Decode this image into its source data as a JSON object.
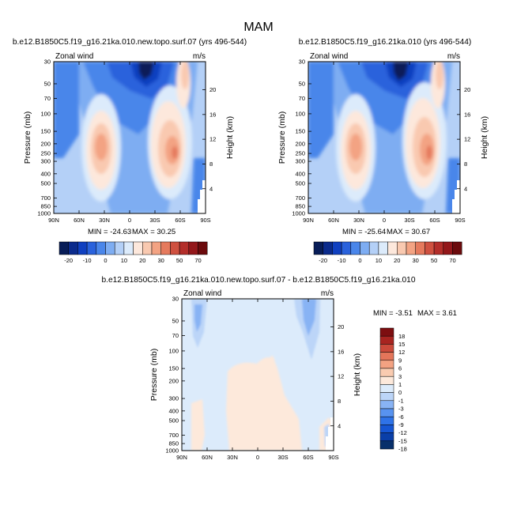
{
  "figure_title": "MAM",
  "chart_data": [
    {
      "type": "heatmap",
      "id": "p1",
      "title": "b.e12.B1850C5.f19_g16.21ka.010.new.topo.surf.07 (yrs 496-544)",
      "left_label": "Zonal wind",
      "right_label": "m/s",
      "xlabel": "",
      "ylabel": "Pressure (mb)",
      "ylabel_right": "Height (km)",
      "x_ticks": [
        "90N",
        "60N",
        "30N",
        "0",
        "30S",
        "60S",
        "90S"
      ],
      "y_ticks": [
        "30",
        "50",
        "70",
        "100",
        "150",
        "200",
        "250",
        "300",
        "400",
        "500",
        "700",
        "850",
        "1000"
      ],
      "height_ticks": [
        "20",
        "16",
        "12",
        "8",
        "4"
      ],
      "min_label": "MIN = -24.63",
      "max_label": "MAX = 30.25",
      "min": -24.63,
      "max": 30.25,
      "contour_levels": [
        -25,
        -20,
        -15,
        -10,
        -5,
        0,
        5,
        10,
        15,
        20,
        25,
        30,
        40,
        50,
        60,
        70
      ],
      "colorbar_labels": [
        "-20",
        "-10",
        "0",
        "10",
        "20",
        "30",
        "50",
        "70"
      ]
    },
    {
      "type": "heatmap",
      "id": "p2",
      "title": "b.e12.B1850C5.f19_g16.21ka.010 (yrs 496-544)",
      "left_label": "Zonal wind",
      "right_label": "m/s",
      "xlabel": "",
      "ylabel": "Pressure (mb)",
      "ylabel_right": "Height (km)",
      "x_ticks": [
        "90N",
        "60N",
        "30N",
        "0",
        "30S",
        "60S",
        "90S"
      ],
      "y_ticks": [
        "30",
        "50",
        "70",
        "100",
        "150",
        "200",
        "250",
        "300",
        "400",
        "500",
        "700",
        "850",
        "1000"
      ],
      "height_ticks": [
        "20",
        "16",
        "12",
        "8",
        "4"
      ],
      "min_label": "MIN = -25.64",
      "max_label": "MAX = 30.67",
      "min": -25.64,
      "max": 30.67,
      "contour_levels": [
        -25,
        -20,
        -15,
        -10,
        -5,
        0,
        5,
        10,
        15,
        20,
        25,
        30,
        40,
        50,
        60,
        70
      ],
      "colorbar_labels": [
        "-20",
        "-10",
        "0",
        "10",
        "20",
        "30",
        "50",
        "70"
      ]
    },
    {
      "type": "heatmap",
      "id": "p3",
      "title": "b.e12.B1850C5.f19_g16.21ka.010.new.topo.surf.07 - b.e12.B1850C5.f19_g16.21ka.010",
      "left_label": "Zonal wind",
      "right_label": "m/s",
      "xlabel": "",
      "ylabel": "Pressure (mb)",
      "ylabel_right": "Height (km)",
      "x_ticks": [
        "90N",
        "60N",
        "30N",
        "0",
        "30S",
        "60S",
        "90S"
      ],
      "y_ticks": [
        "30",
        "50",
        "70",
        "100",
        "150",
        "200",
        "300",
        "400",
        "500",
        "700",
        "850",
        "1000"
      ],
      "height_ticks": [
        "20",
        "16",
        "12",
        "8",
        "4"
      ],
      "min_label": "MIN = -3.51",
      "max_label": "MAX = 3.61",
      "min": -3.51,
      "max": 3.61,
      "contour_levels": [
        -18,
        -15,
        -12,
        -9,
        -6,
        -3,
        -1,
        0,
        1,
        3,
        6,
        9,
        12,
        15,
        18
      ],
      "colorbar_labels": [
        "18",
        "15",
        "12",
        "9",
        "6",
        "3",
        "1",
        "0",
        "-1",
        "-3",
        "-6",
        "-9",
        "-12",
        "-15",
        "-18"
      ]
    }
  ],
  "colors": {
    "full_field_bins": [
      "#081d58",
      "#0b2b8c",
      "#1040c0",
      "#2a62dc",
      "#4a86ea",
      "#7eadf2",
      "#b4d0f7",
      "#dcebfb",
      "#fde8dc",
      "#f9c9b0",
      "#f3a383",
      "#e57a5d",
      "#cf5140",
      "#b32e2a",
      "#93171a",
      "#6b0a0c"
    ],
    "diff_bins": [
      "#08306b",
      "#0a3fa8",
      "#1656d3",
      "#2f73e8",
      "#5893f0",
      "#88b3f4",
      "#bcd5f8",
      "#dcebfb",
      "#fde9db",
      "#f9cbb0",
      "#f3a282",
      "#e4755a",
      "#cb4a3b",
      "#a82420",
      "#7d0e10"
    ]
  }
}
